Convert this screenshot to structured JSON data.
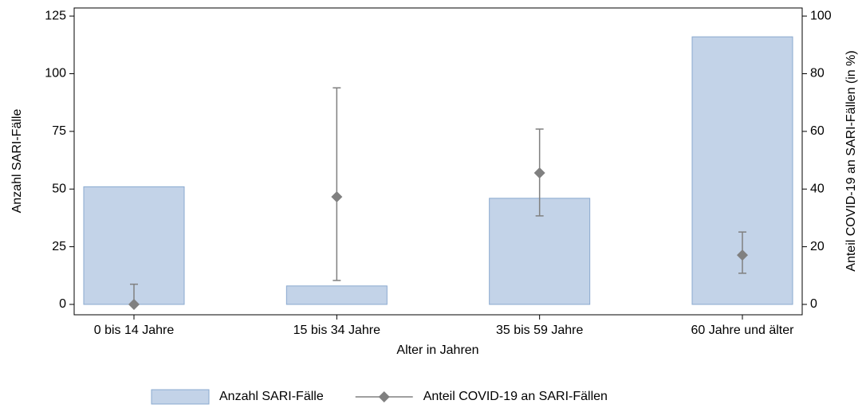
{
  "chart_data": {
    "type": "bar",
    "x_label": "Alter in Jahren",
    "y_label": "Anzahl SARI-Fälle",
    "y2_label": "Anteil COVID-19 an SARI-Fällen (in %)",
    "categories": [
      "0 bis 14 Jahre",
      "15 bis 34 Jahre",
      "35 bis 59 Jahre",
      "60 Jahre und älter"
    ],
    "series": [
      {
        "name": "Anzahl SARI-Fälle",
        "color": "#c3d3e8",
        "values": [
          51,
          8,
          46,
          116
        ]
      },
      {
        "name": "Anteil COVID-19 an SARI-Fällen",
        "color": "#808080",
        "type": "scatter",
        "axis": "y2",
        "values": [
          0,
          37.3,
          45.6,
          17.1
        ],
        "lower": [
          0,
          8.3,
          30.7,
          10.8
        ],
        "upper": [
          7,
          75.1,
          60.8,
          25.1
        ]
      }
    ],
    "ylim": [
      -4.5,
      128.5
    ],
    "yticks": [
      0,
      25,
      50,
      75,
      100,
      125
    ],
    "y2lim": [
      -3.6,
      102.8
    ],
    "y2ticks": [
      0,
      20,
      40,
      60,
      80,
      100
    ],
    "legend": "bottom"
  }
}
